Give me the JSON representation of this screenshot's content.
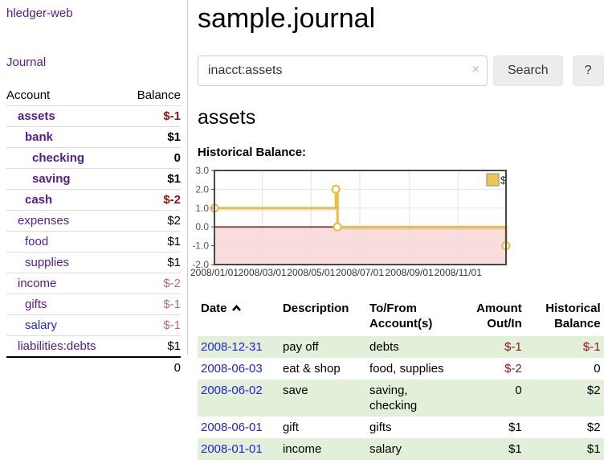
{
  "app": {
    "brand": "hledger-web",
    "nav_journal": "Journal"
  },
  "sidebar": {
    "headers": {
      "account": "Account",
      "balance": "Balance"
    },
    "accounts": [
      {
        "name": "assets",
        "balance": "$-1",
        "indent": 0,
        "in_acct": true,
        "balance_class": "neg-strong",
        "link_color": "purple"
      },
      {
        "name": "bank",
        "balance": "$1",
        "indent": 1,
        "in_acct": true,
        "balance_class": "",
        "link_color": "purple"
      },
      {
        "name": "checking",
        "balance": "0",
        "indent": 2,
        "in_acct": true,
        "balance_class": "",
        "link_color": "purple"
      },
      {
        "name": "saving",
        "balance": "$1",
        "indent": 2,
        "in_acct": true,
        "balance_class": "",
        "link_color": "purple"
      },
      {
        "name": "cash",
        "balance": "$-2",
        "indent": 1,
        "in_acct": true,
        "balance_class": "neg-strong",
        "link_color": "purple"
      },
      {
        "name": "expenses",
        "balance": "$2",
        "indent": 0,
        "in_acct": false,
        "balance_class": "",
        "link_color": "purple"
      },
      {
        "name": "food",
        "balance": "$1",
        "indent": 1,
        "in_acct": false,
        "balance_class": "",
        "link_color": "purple"
      },
      {
        "name": "supplies",
        "balance": "$1",
        "indent": 1,
        "in_acct": false,
        "balance_class": "",
        "link_color": "purple"
      },
      {
        "name": "income",
        "balance": "$-2",
        "indent": 0,
        "in_acct": false,
        "balance_class": "neg-soft",
        "link_color": "purple"
      },
      {
        "name": "gifts",
        "balance": "$-1",
        "indent": 1,
        "in_acct": false,
        "balance_class": "neg-soft",
        "link_color": "purple"
      },
      {
        "name": "salary",
        "balance": "$-1",
        "indent": 1,
        "in_acct": false,
        "balance_class": "neg-soft",
        "link_color": "blue"
      },
      {
        "name": "liabilities:debts",
        "balance": "$1",
        "indent": 0,
        "in_acct": false,
        "balance_class": "",
        "link_color": "purple"
      }
    ],
    "total": "0"
  },
  "main": {
    "title": "sample.journal",
    "search": {
      "value": "inacct:assets",
      "clear_icon": "×",
      "search_button": "Search",
      "help_button": "?"
    },
    "account_heading": "assets",
    "chart_label": "Historical Balance:"
  },
  "chart_data": {
    "type": "line",
    "step": true,
    "title": "Historical Balance:",
    "series_name": "$",
    "x_start": "2008-01-01",
    "x_end": "2008-12-31",
    "points": [
      {
        "date": "2008-01-01",
        "value": 1
      },
      {
        "date": "2008-06-01",
        "value": 2
      },
      {
        "date": "2008-06-03",
        "value": 0
      },
      {
        "date": "2008-12-31",
        "value": -1
      }
    ],
    "ylim": [
      -2,
      3
    ],
    "yticks": [
      "3.0",
      "2.0",
      "1.0",
      "0.0",
      "-1.0",
      "-2.0"
    ],
    "xticks": [
      {
        "date": "2008-01-01",
        "label": "2008/01/01"
      },
      {
        "date": "2008-03-01",
        "label": "2008/03/01"
      },
      {
        "date": "2008-05-01",
        "label": "2008/05/01"
      },
      {
        "date": "2008-07-01",
        "label": "2008/07/01"
      },
      {
        "date": "2008-09-01",
        "label": "2008/09/01"
      },
      {
        "date": "2008-11-01",
        "label": "2008/11/01"
      }
    ],
    "legend_position": "top-right",
    "grid": true,
    "colors": {
      "line": "#e7bf4b",
      "marker_fill": "#ffffff",
      "negative_fill": "#fbdcdc",
      "zero_line": "#7f0000",
      "grid": "#e2e2e2",
      "border": "#474747",
      "legend_fill": "#ecc64f",
      "axis_text": "#555555"
    }
  },
  "register": {
    "headers": [
      {
        "label": "Date"
      },
      {
        "label": "Description"
      },
      {
        "label": "To/From Account(s)"
      },
      {
        "label": "Amount Out/In"
      },
      {
        "label": "Historical Balance"
      }
    ],
    "sort": "date-ascending",
    "rows": [
      {
        "date": "2008-12-31",
        "description": "pay off",
        "accounts": "debts",
        "amount": "$-1",
        "amount_negative": true,
        "balance": "$-1",
        "balance_negative": true
      },
      {
        "date": "2008-06-03",
        "description": "eat & shop",
        "accounts": "food, supplies",
        "amount": "$-2",
        "amount_negative": true,
        "balance": "0",
        "balance_negative": false
      },
      {
        "date": "2008-06-02",
        "description": "save",
        "accounts": "saving, checking",
        "amount": "0",
        "amount_negative": false,
        "balance": "$2",
        "balance_negative": false
      },
      {
        "date": "2008-06-01",
        "description": "gift",
        "accounts": "gifts",
        "amount": "$1",
        "amount_negative": false,
        "balance": "$2",
        "balance_negative": false
      },
      {
        "date": "2008-01-01",
        "description": "income",
        "accounts": "salary",
        "amount": "$1",
        "amount_negative": false,
        "balance": "$1",
        "balance_negative": false
      }
    ]
  }
}
